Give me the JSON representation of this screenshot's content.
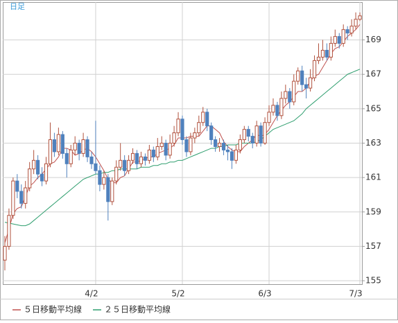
{
  "chart_data": {
    "type": "candlestick",
    "title": "日足",
    "categories": [
      null,
      null,
      null,
      null,
      null,
      null,
      null,
      null,
      null,
      null,
      null,
      null,
      null,
      null,
      null,
      null,
      null,
      null,
      null,
      null,
      null,
      null,
      "4/2",
      null,
      null,
      null,
      null,
      null,
      null,
      null,
      null,
      null,
      null,
      null,
      null,
      null,
      null,
      null,
      null,
      null,
      null,
      null,
      null,
      "5/2",
      null,
      null,
      null,
      null,
      null,
      null,
      null,
      null,
      null,
      null,
      null,
      null,
      null,
      null,
      null,
      null,
      null,
      null,
      null,
      null,
      "6/3",
      null,
      null,
      null,
      null,
      null,
      null,
      null,
      null,
      null,
      null,
      null,
      null,
      null,
      null,
      null,
      null,
      null,
      null,
      null,
      null,
      null,
      "7/3"
    ],
    "open": [
      156.2,
      157.0,
      158.8,
      160.8,
      160.2,
      159.5,
      160.4,
      161.5,
      162.0,
      161.2,
      160.8,
      161.8,
      163.2,
      162.5,
      163.5,
      162.4,
      161.8,
      162.6,
      163.0,
      162.4,
      163.2,
      162.2,
      161.8,
      161.4,
      160.6,
      161.0,
      159.6,
      160.8,
      161.6,
      162.0,
      161.4,
      162.0,
      162.4,
      161.8,
      162.2,
      162.0,
      162.6,
      162.2,
      162.8,
      163.0,
      162.3,
      163.0,
      163.6,
      164.4,
      163.2,
      162.5,
      163.3,
      163.6,
      164.2,
      164.8,
      164.0,
      163.2,
      162.8,
      163.0,
      162.6,
      162.5,
      162.0,
      162.6,
      163.2,
      163.8,
      163.4,
      163.0,
      164.0,
      163.0,
      164.2,
      164.8,
      165.2,
      164.6,
      165.6,
      166.0,
      165.4,
      166.6,
      167.2,
      166.4,
      166.2,
      166.8,
      167.8,
      168.0,
      168.4,
      168.0,
      168.8,
      169.2,
      168.8,
      169.6,
      169.4,
      169.8,
      170.2
    ],
    "high": [
      157.6,
      159.2,
      161.0,
      161.2,
      160.6,
      160.8,
      161.9,
      162.6,
      162.3,
      161.6,
      162.2,
      164.2,
      163.6,
      163.9,
      163.7,
      162.7,
      162.9,
      163.4,
      163.2,
      163.6,
      163.4,
      162.5,
      164.3,
      161.7,
      161.4,
      161.2,
      161.0,
      162.0,
      163.0,
      162.3,
      162.3,
      162.7,
      162.6,
      162.5,
      162.4,
      162.9,
      162.8,
      163.3,
      163.4,
      163.2,
      163.5,
      164.0,
      164.8,
      164.6,
      163.4,
      163.6,
      163.9,
      164.6,
      165.1,
      165.0,
      164.2,
      163.4,
      163.3,
      163.2,
      162.9,
      162.7,
      162.9,
      163.5,
      164.0,
      164.0,
      163.6,
      164.3,
      164.2,
      164.5,
      165.2,
      165.6,
      165.4,
      166.0,
      166.4,
      166.2,
      167.0,
      167.4,
      167.5,
      166.8,
      167.3,
      168.1,
      168.8,
      169.0,
      168.8,
      169.2,
      169.6,
      169.4,
      169.9,
      169.8,
      170.2,
      170.6,
      170.6
    ],
    "low": [
      155.6,
      156.8,
      158.6,
      159.8,
      159.2,
      159.2,
      160.2,
      161.2,
      160.9,
      160.5,
      160.6,
      161.6,
      162.2,
      162.3,
      162.1,
      161.0,
      161.6,
      162.3,
      162.0,
      162.2,
      161.9,
      161.5,
      161.2,
      160.2,
      160.3,
      158.5,
      159.4,
      160.6,
      161.4,
      161.1,
      161.2,
      161.8,
      161.5,
      161.6,
      161.7,
      161.8,
      161.9,
      162.0,
      162.6,
      162.0,
      162.1,
      162.8,
      163.4,
      162.9,
      162.2,
      162.3,
      163.0,
      163.4,
      164.0,
      163.7,
      162.9,
      162.5,
      162.5,
      162.3,
      162.0,
      161.5,
      161.8,
      162.4,
      163.0,
      163.1,
      162.7,
      162.8,
      162.8,
      162.9,
      164.0,
      164.6,
      164.3,
      164.4,
      165.3,
      165.0,
      165.2,
      166.4,
      166.0,
      165.6,
      166.0,
      166.6,
      167.6,
      167.8,
      167.8,
      167.8,
      168.6,
      168.5,
      168.6,
      169.0,
      169.2,
      169.6,
      170.1
    ],
    "close": [
      157.0,
      158.8,
      160.8,
      160.2,
      159.5,
      160.4,
      161.5,
      162.0,
      161.2,
      160.8,
      161.8,
      163.2,
      162.5,
      163.5,
      162.4,
      161.8,
      162.6,
      163.0,
      162.4,
      163.2,
      162.2,
      161.8,
      161.4,
      160.6,
      161.0,
      159.6,
      160.8,
      161.6,
      162.0,
      161.4,
      162.0,
      162.4,
      161.8,
      162.2,
      162.0,
      162.6,
      162.2,
      162.8,
      163.0,
      162.3,
      163.0,
      163.6,
      164.4,
      163.2,
      162.5,
      163.3,
      163.6,
      164.2,
      164.8,
      164.0,
      163.2,
      162.8,
      163.0,
      162.6,
      162.5,
      162.0,
      162.6,
      163.2,
      163.8,
      163.4,
      163.0,
      164.0,
      163.0,
      164.2,
      164.8,
      165.2,
      164.6,
      165.6,
      166.0,
      165.4,
      166.6,
      167.2,
      166.4,
      166.2,
      166.8,
      167.8,
      168.0,
      168.4,
      168.0,
      168.8,
      169.2,
      168.8,
      169.6,
      169.4,
      169.8,
      170.2,
      170.4
    ],
    "up_color": "#b0503c",
    "down_color": "#4f81bd",
    "series": [
      {
        "name": "５日移動平均線",
        "color": "#c0504d",
        "values": [
          157.2,
          158.0,
          158.9,
          159.2,
          159.3,
          159.9,
          160.5,
          160.7,
          161.0,
          161.2,
          161.5,
          161.8,
          161.9,
          162.2,
          162.7,
          162.7,
          162.6,
          162.3,
          162.4,
          162.6,
          162.7,
          162.5,
          162.2,
          161.8,
          161.4,
          160.9,
          160.7,
          160.7,
          161.0,
          161.1,
          161.5,
          161.9,
          161.9,
          162.0,
          162.1,
          162.2,
          162.2,
          162.4,
          162.5,
          162.6,
          162.7,
          162.9,
          163.3,
          163.3,
          163.3,
          163.4,
          163.4,
          163.4,
          163.7,
          164.0,
          164.0,
          163.8,
          163.6,
          163.1,
          162.8,
          162.6,
          162.5,
          162.5,
          162.8,
          163.0,
          163.2,
          163.5,
          163.4,
          163.5,
          163.8,
          164.2,
          164.6,
          164.9,
          165.2,
          165.4,
          165.7,
          166.0,
          166.0,
          166.2,
          166.6,
          166.9,
          167.0,
          167.4,
          167.8,
          168.2,
          168.5,
          168.6,
          168.9,
          169.2,
          169.4,
          169.6,
          169.9
        ]
      },
      {
        "name": "２５日移動平均線",
        "color": "#2e9e6e",
        "values": [
          158.4,
          158.35,
          158.3,
          158.25,
          158.2,
          158.2,
          158.3,
          158.5,
          158.7,
          158.9,
          159.1,
          159.3,
          159.5,
          159.7,
          159.9,
          160.1,
          160.3,
          160.5,
          160.7,
          160.9,
          161.0,
          161.1,
          161.2,
          161.2,
          161.3,
          161.3,
          161.4,
          161.4,
          161.5,
          161.5,
          161.5,
          161.5,
          161.5,
          161.6,
          161.6,
          161.6,
          161.7,
          161.7,
          161.8,
          161.8,
          161.9,
          161.9,
          162.0,
          162.0,
          162.1,
          162.2,
          162.3,
          162.4,
          162.5,
          162.6,
          162.7,
          162.7,
          162.8,
          162.8,
          162.9,
          162.9,
          162.9,
          163.0,
          163.0,
          163.0,
          163.0,
          163.1,
          163.2,
          163.4,
          163.6,
          163.8,
          163.9,
          164.0,
          164.1,
          164.2,
          164.3,
          164.5,
          164.7,
          165.0,
          165.2,
          165.4,
          165.6,
          165.8,
          166.0,
          166.2,
          166.4,
          166.6,
          166.8,
          167.0,
          167.1,
          167.2,
          167.3
        ]
      }
    ],
    "ylim": [
      154.8,
      171.2
    ],
    "yticks": [
      155,
      157,
      159,
      161,
      163,
      165,
      167,
      169
    ],
    "grid": true
  }
}
